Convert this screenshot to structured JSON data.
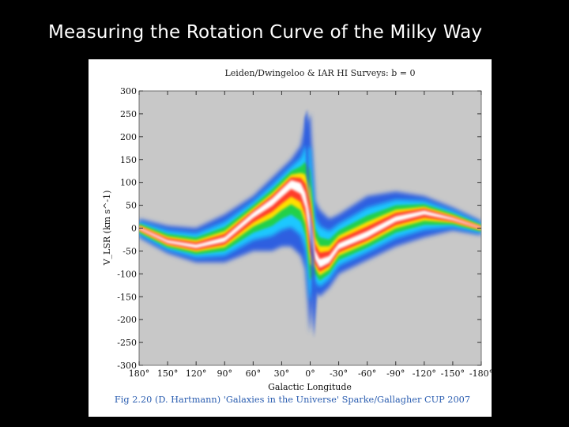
{
  "slide": {
    "title": "Measuring the Rotation Curve of the Milky Way"
  },
  "chart_data": {
    "type": "heatmap",
    "title": "Leiden/Dwingeloo & IAR HI Surveys:  b = 0",
    "xlabel": "Galactic Longitude",
    "ylabel": "V_LSR (km s^-1)",
    "xlim": [
      180,
      -180
    ],
    "ylim": [
      -300,
      300
    ],
    "x_ticks": [
      180,
      150,
      120,
      90,
      60,
      30,
      0,
      -30,
      -60,
      -90,
      -120,
      -150,
      -180
    ],
    "x_tick_labels": [
      "180°",
      "150°",
      "120°",
      "90°",
      "60°",
      "30°",
      "0°",
      "-30°",
      "-60°",
      "-90°",
      "-120°",
      "-150°",
      "-180°"
    ],
    "y_ticks": [
      300,
      250,
      200,
      150,
      100,
      50,
      0,
      -50,
      -100,
      -150,
      -200,
      -250,
      -300
    ],
    "y_tick_labels": [
      "300",
      "250",
      "200",
      "150",
      "100",
      "50",
      "0",
      "-50",
      "-100",
      "-150",
      "-200",
      "-250",
      "-300"
    ],
    "emission_ridge": {
      "longitude": [
        180,
        150,
        120,
        90,
        60,
        40,
        30,
        20,
        10,
        5,
        0,
        -5,
        -10,
        -20,
        -30,
        -60,
        -90,
        -120,
        -150,
        -180
      ],
      "velocity_center": [
        0,
        -30,
        -40,
        -25,
        30,
        60,
        80,
        100,
        90,
        60,
        0,
        -60,
        -80,
        -70,
        -40,
        -15,
        20,
        35,
        20,
        0
      ],
      "velocity_upper": [
        20,
        5,
        0,
        30,
        70,
        110,
        130,
        150,
        180,
        230,
        250,
        60,
        40,
        20,
        30,
        70,
        80,
        70,
        45,
        15
      ],
      "velocity_lower": [
        -20,
        -55,
        -75,
        -75,
        -50,
        -50,
        -40,
        -40,
        -60,
        -90,
        -230,
        -140,
        -150,
        -130,
        -100,
        -70,
        -40,
        -20,
        -5,
        -15
      ]
    },
    "colorscale": [
      "#c8c8c8",
      "#2f5fe0",
      "#1ec8ff",
      "#20d04a",
      "#ffe000",
      "#ff3a2a",
      "#ffffff"
    ],
    "caption": "Fig 2.20 (D. Hartmann) 'Galaxies in the Universe' Sparke/Gallagher CUP 2007"
  }
}
